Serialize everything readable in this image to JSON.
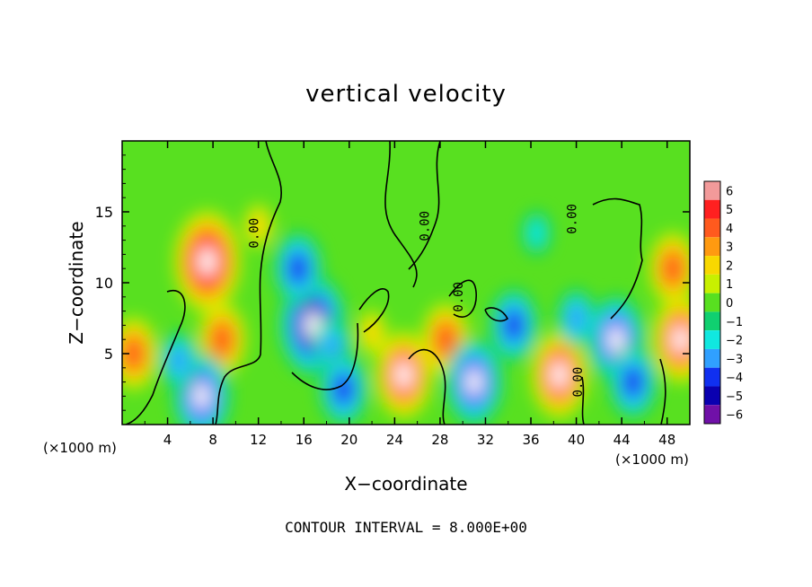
{
  "chart_data": {
    "type": "heatmap",
    "title": "vertical velocity",
    "xlabel": "X−coordinate",
    "ylabel": "Z−coordinate",
    "x_unit_left": "(×1000 m)",
    "x_unit_right": "(×1000 m)",
    "xlim": [
      0,
      50
    ],
    "ylim": [
      0,
      20
    ],
    "x_ticks": [
      4,
      8,
      12,
      16,
      20,
      24,
      28,
      32,
      36,
      40,
      44,
      48
    ],
    "y_ticks": [
      5,
      10,
      15
    ],
    "colorbar": {
      "levels": [
        6,
        5,
        4,
        3,
        2,
        1,
        0,
        -1,
        -2,
        -3,
        -4,
        -5,
        -6
      ],
      "labels": [
        "6",
        "5",
        "4",
        "3",
        "2",
        "1",
        "0",
        "−1",
        "−2",
        "−3",
        "−4",
        "−5",
        "−6"
      ],
      "colors": [
        "#f29a9a",
        "#ff2020",
        "#ff5a1e",
        "#ff9a10",
        "#f8d800",
        "#c8f000",
        "#58e020",
        "#10d070",
        "#10e8e0",
        "#30a0ff",
        "#1030f0",
        "#0a00b0",
        "#7010a8"
      ]
    },
    "contour_labels": [
      {
        "text": "0.00",
        "x": 12.0,
        "z": 13.5
      },
      {
        "text": "0.00",
        "x": 27.0,
        "z": 14.0
      },
      {
        "text": "0.00",
        "x": 30.0,
        "z": 9.0
      },
      {
        "text": "0.00",
        "x": 40.0,
        "z": 14.5
      },
      {
        "text": "0.00",
        "x": 40.5,
        "z": 3.0
      }
    ],
    "features": [
      {
        "x": 1.0,
        "z": 5.0,
        "w": 4
      },
      {
        "x": 7.5,
        "z": 11.5,
        "w": 6
      },
      {
        "x": 8.8,
        "z": 6.0,
        "w": 4
      },
      {
        "x": 7.0,
        "z": 2.0,
        "w": -5
      },
      {
        "x": 5.0,
        "z": 4.5,
        "w": -3
      },
      {
        "x": 16.8,
        "z": 7.0,
        "w": -6
      },
      {
        "x": 15.5,
        "z": 11.0,
        "w": -4
      },
      {
        "x": 18.5,
        "z": 5.5,
        "w": -3
      },
      {
        "x": 19.5,
        "z": 2.5,
        "w": -4
      },
      {
        "x": 12.0,
        "z": 14.0,
        "w": 2
      },
      {
        "x": 24.8,
        "z": 3.5,
        "w": 5
      },
      {
        "x": 28.5,
        "z": 6.0,
        "w": 4
      },
      {
        "x": 31.0,
        "z": 3.0,
        "w": -5
      },
      {
        "x": 36.5,
        "z": 13.5,
        "w": -2
      },
      {
        "x": 38.5,
        "z": 3.5,
        "w": 5
      },
      {
        "x": 34.5,
        "z": 7.0,
        "w": -4
      },
      {
        "x": 43.5,
        "z": 6.0,
        "w": -5
      },
      {
        "x": 45.0,
        "z": 3.0,
        "w": -4
      },
      {
        "x": 49.2,
        "z": 6.0,
        "w": 5
      },
      {
        "x": 48.5,
        "z": 11.0,
        "w": 4
      },
      {
        "x": 40.0,
        "z": 7.5,
        "w": -3
      },
      {
        "x": 22.0,
        "z": 6.5,
        "w": 2
      }
    ]
  },
  "footer": {
    "contour_interval": "CONTOUR INTERVAL = 8.000E+00"
  }
}
